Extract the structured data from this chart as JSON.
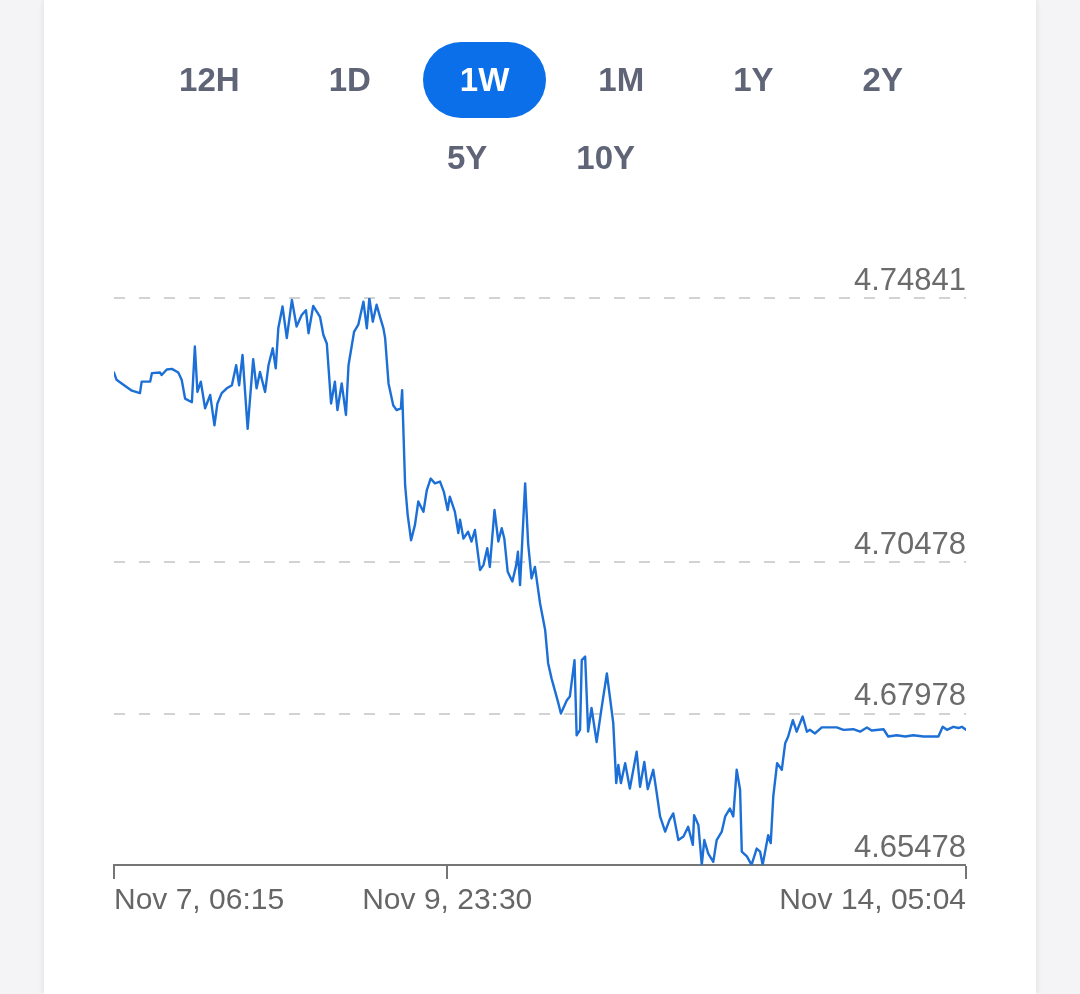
{
  "chart_data": {
    "type": "line",
    "annotations": [
      "12H",
      "1D",
      "1W",
      "1M",
      "1Y",
      "2Y",
      "5Y",
      "10Y"
    ],
    "color": "#1c6fd6",
    "x": [
      "--11-07T06:15",
      "--11-07T06:45",
      "--11-07T07:45",
      "--11-07T09:45",
      "--11-07T11:20",
      "--11-07T11:40",
      "--11-07T13:20",
      "--11-07T13:40",
      "--11-07T15:15",
      "--11-07T15:35",
      "--11-07T16:35",
      "--11-07T17:35",
      "--11-07T18:50",
      "--11-07T19:30",
      "--11-07T20:10",
      "--11-07T21:30",
      "--11-07T22:05",
      "--11-07T22:35",
      "--11-07T23:15",
      "--11-08T00:05",
      "--11-08T01:05",
      "--11-08T01:55",
      "--11-08T02:30",
      "--11-08T03:20",
      "--11-08T04:20",
      "--11-08T05:20",
      "--11-08T06:10",
      "--11-08T06:45",
      "--11-08T07:25",
      "--11-08T08:25",
      "--11-08T09:30",
      "--11-08T10:10",
      "--11-08T10:50",
      "--11-08T11:50",
      "--11-08T12:30",
      "--11-08T13:20",
      "--11-08T13:55",
      "--11-08T14:25",
      "--11-08T15:15",
      "--11-08T16:05",
      "--11-08T17:05",
      "--11-08T18:00",
      "--11-08T19:00",
      "--11-08T19:50",
      "--11-08T20:20",
      "--11-08T21:15",
      "--11-08T22:35",
      "--11-08T23:15",
      "--11-08T23:55",
      "--11-09T00:45",
      "--11-09T01:30",
      "--11-09T02:00",
      "--11-09T02:50",
      "--11-09T03:40",
      "--11-09T04:10",
      "--11-09T05:15",
      "--11-09T06:05",
      "--11-09T07:05",
      "--11-09T07:45",
      "--11-09T08:15",
      "--11-09T08:55",
      "--11-09T09:40",
      "--11-09T10:20",
      "--11-09T11:00",
      "--11-09T11:20",
      "--11-09T12:00",
      "--11-09T12:55",
      "--11-09T13:35",
      "--11-09T14:25",
      "--11-09T14:40",
      "--11-09T15:15",
      "--11-09T15:45",
      "--11-09T16:25",
      "--11-09T17:10",
      "--11-09T17:50",
      "--11-09T18:50",
      "--11-09T19:30",
      "--11-09T20:15",
      "--11-09T21:05",
      "--11-09T22:05",
      "--11-09T22:50",
      "--11-09T23:35",
      "--11-10T00:00",
      "--11-10T01:00",
      "--11-10T01:40",
      "--11-10T02:00",
      "--11-10T02:40",
      "--11-10T03:35",
      "--11-10T04:15",
      "--11-10T04:55",
      "--11-10T05:55",
      "--11-10T06:35",
      "--11-10T07:20",
      "--11-10T07:50",
      "--11-10T08:45",
      "--11-10T09:30",
      "--11-10T10:10",
      "--11-10T10:40",
      "--11-10T11:20",
      "--11-10T12:15",
      "--11-10T13:00",
      "--11-10T13:20",
      "--11-10T13:45",
      "--11-10T14:45",
      "--11-10T15:20",
      "--11-10T16:00",
      "--11-10T16:40",
      "--11-10T17:40",
      "--11-10T18:40",
      "--11-10T19:15",
      "--11-10T19:55",
      "--11-10T21:15",
      "--11-10T21:45",
      "--11-10T22:55",
      "--11-10T23:30",
      "--11-11T00:25",
      "--11-11T00:50",
      "--11-11T01:30",
      "--11-11T01:50",
      "--11-11T02:30",
      "--11-11T03:05",
      "--11-11T03:45",
      "--11-11T04:45",
      "--11-11T05:45",
      "--11-11T06:45",
      "--11-11T07:20",
      "--11-11T08:00",
      "--11-11T08:35",
      "--11-11T09:00",
      "--11-11T09:30",
      "--11-11T10:20",
      "--11-11T11:15",
      "--11-11T12:35",
      "--11-11T13:15",
      "--11-11T14:05",
      "--11-11T14:45",
      "--11-11T15:50",
      "--11-11T16:25",
      "--11-11T17:10",
      "--11-11T18:10",
      "--11-11T19:00",
      "--11-11T19:45",
      "--11-11T20:45",
      "--11-11T21:45",
      "--11-11T22:40",
      "--11-11T23:35",
      "--11-11T23:50",
      "--11-12T00:40",
      "--11-12T01:20",
      "--11-12T01:50",
      "--11-12T02:35",
      "--11-12T03:35",
      "--11-12T04:15",
      "--11-12T05:15",
      "--11-12T05:55",
      "--11-12T06:50",
      "--11-12T07:30",
      "--11-12T08:10",
      "--11-12T08:50",
      "--11-12T09:10",
      "--11-12T10:10",
      "--11-12T11:05",
      "--11-12T12:05",
      "--11-12T12:45",
      "--11-12T13:15",
      "--11-12T14:20",
      "--11-12T14:50",
      "--11-12T15:20",
      "--11-12T16:05",
      "--11-12T17:00",
      "--11-12T17:40",
      "--11-12T18:15",
      "--11-12T19:10",
      "--11-12T19:55",
      "--11-12T21:05",
      "--11-12T21:55",
      "--11-12T22:30",
      "--11-12T23:30",
      "--11-13T00:50",
      "--11-13T03:45",
      "--11-13T05:05",
      "--11-13T07:00",
      "--11-13T08:20",
      "--11-13T09:40",
      "--11-13T10:35",
      "--11-13T12:55",
      "--11-13T13:50",
      "--11-13T15:30",
      "--11-13T17:10",
      "--11-13T18:45",
      "--11-13T20:45",
      "--11-13T23:40",
      "--11-14T00:30",
      "--11-14T01:20",
      "--11-14T02:35",
      "--11-14T03:35",
      "--11-14T04:15",
      "--11-14T05:04"
    ],
    "values": [
      4.7361,
      4.7349,
      4.7343,
      4.7331,
      4.7327,
      4.7346,
      4.7346,
      4.736,
      4.7361,
      4.7357,
      4.7366,
      4.7367,
      4.7361,
      4.7349,
      4.7318,
      4.7312,
      4.7404,
      4.7329,
      4.7346,
      4.7302,
      4.7324,
      4.7274,
      4.731,
      4.7327,
      4.7335,
      4.734,
      4.7373,
      4.734,
      4.739,
      4.7268,
      4.7383,
      4.7335,
      4.7362,
      4.7329,
      4.7373,
      4.7401,
      4.7368,
      4.7434,
      4.747,
      4.7418,
      4.7481,
      4.7437,
      4.7456,
      4.7464,
      4.7426,
      4.7471,
      4.7453,
      4.7423,
      4.7409,
      4.731,
      4.7346,
      4.7299,
      4.7343,
      4.7291,
      4.7373,
      4.7428,
      4.744,
      4.7478,
      4.7434,
      4.7484,
      4.7445,
      4.7473,
      4.7453,
      4.7434,
      4.7418,
      4.7343,
      4.7307,
      4.7299,
      4.7302,
      4.7332,
      4.7175,
      4.7126,
      4.7084,
      4.7109,
      4.7148,
      4.7131,
      4.7167,
      4.7186,
      4.7178,
      4.7181,
      4.7164,
      4.7134,
      4.7156,
      4.7131,
      4.7096,
      4.7118,
      4.7087,
      4.7098,
      4.7082,
      4.7101,
      4.7035,
      4.7043,
      4.7071,
      4.704,
      4.7134,
      4.7082,
      4.7104,
      4.7087,
      4.7032,
      4.7016,
      4.7043,
      4.7065,
      4.701,
      4.7178,
      4.7079,
      4.7021,
      4.704,
      4.698,
      4.6936,
      4.6881,
      4.6856,
      4.6815,
      4.6798,
      4.682,
      4.6826,
      4.6886,
      4.6762,
      4.6771,
      4.6886,
      4.6892,
      4.6768,
      4.6807,
      4.6751,
      4.6809,
      4.6864,
      4.6826,
      4.6782,
      4.6683,
      4.6713,
      4.6683,
      4.6716,
      4.6674,
      4.6735,
      4.6677,
      4.6718,
      4.6673,
      4.6705,
      4.6672,
      4.6628,
      4.6603,
      4.6622,
      4.6633,
      4.6589,
      4.6595,
      4.6611,
      4.6581,
      4.663,
      4.6614,
      4.6548,
      4.6589,
      4.6567,
      4.6553,
      4.6589,
      4.6603,
      4.6628,
      4.6641,
      4.6628,
      4.6705,
      4.6672,
      4.657,
      4.6562,
      4.6548,
      4.6575,
      4.657,
      4.6548,
      4.6597,
      4.6584,
      4.6661,
      4.6716,
      4.6705,
      4.6749,
      4.676,
      4.6787,
      4.6768,
      4.6793,
      4.6768,
      4.6771,
      4.6765,
      4.6775,
      4.6775,
      4.6771,
      4.6772,
      4.6768,
      4.6775,
      4.677,
      4.6772,
      4.676,
      4.6762,
      4.676,
      4.6762,
      4.676,
      4.676,
      4.6776,
      4.6771,
      4.6776,
      4.6774,
      4.6776,
      4.6771
    ],
    "xlim": [
      "--11-07T06:15",
      "--11-14T05:04"
    ],
    "xticks": [
      {
        "value": "--11-07T06:15",
        "label": "Nov 7, 06:15"
      },
      {
        "value": "--11-09T23:30",
        "label": "Nov 9, 23:30"
      },
      {
        "value": "--11-14T05:04",
        "label": "Nov 14, 05:04"
      }
    ],
    "ylim": [
      4.65478,
      4.74841
    ],
    "yticks": [
      4.65478,
      4.67978,
      4.70478,
      4.74841
    ],
    "grid": "y"
  }
}
